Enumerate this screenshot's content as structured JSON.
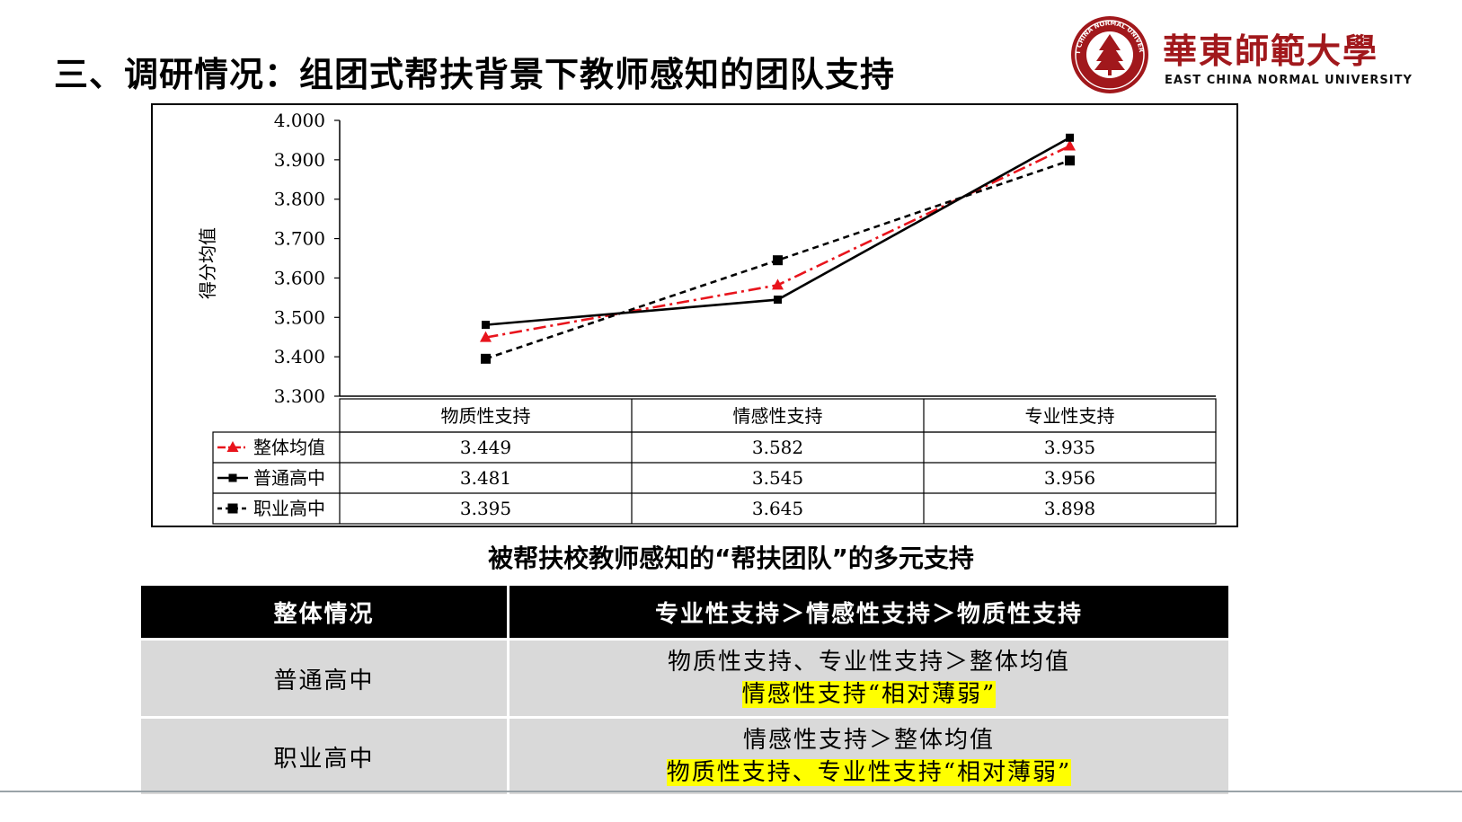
{
  "slide": {
    "title": "三、调研情况：组团式帮扶背景下教师感知的团队支持"
  },
  "logo": {
    "name_cn": "華東師範大學",
    "name_en": "EAST CHINA NORMAL UNIVERSITY",
    "seal_text": "EAST CHINA NORMAL UNIVERSITY",
    "brand_color": "#a1181c"
  },
  "chart_data": {
    "type": "line",
    "ylabel": "得分均值",
    "ylim": [
      3.3,
      4.0
    ],
    "yticks": [
      "3.300",
      "3.400",
      "3.500",
      "3.600",
      "3.700",
      "3.800",
      "3.900",
      "4.000"
    ],
    "categories": [
      "物质性支持",
      "情感性支持",
      "专业性支持"
    ],
    "series": [
      {
        "name": "整体均值",
        "values": [
          3.449,
          3.582,
          3.935
        ],
        "labels": [
          "3.449",
          "3.582",
          "3.935"
        ],
        "color": "#e8141c",
        "marker": "triangle",
        "dash": "dash-dot"
      },
      {
        "name": "普通高中",
        "values": [
          3.481,
          3.545,
          3.956
        ],
        "labels": [
          "3.481",
          "3.545",
          "3.956"
        ],
        "color": "#000000",
        "marker": "square",
        "dash": "solid"
      },
      {
        "name": "职业高中",
        "values": [
          3.395,
          3.645,
          3.898
        ],
        "labels": [
          "3.395",
          "3.645",
          "3.898"
        ],
        "color": "#000000",
        "marker": "square",
        "dash": "dashed"
      }
    ],
    "legend": "data-table"
  },
  "caption": "被帮扶校教师感知的“帮扶团队”的多元支持",
  "summary": {
    "header": [
      "整体情况",
      "专业性支持＞情感性支持＞物质性支持"
    ],
    "rows": [
      {
        "label": "普通高中",
        "line1": "物质性支持、专业性支持＞整体均值",
        "line2": "情感性支持“相对薄弱”"
      },
      {
        "label": "职业高中",
        "line1": "情感性支持＞整体均值",
        "line2": "物质性支持、专业性支持“相对薄弱”"
      }
    ]
  }
}
